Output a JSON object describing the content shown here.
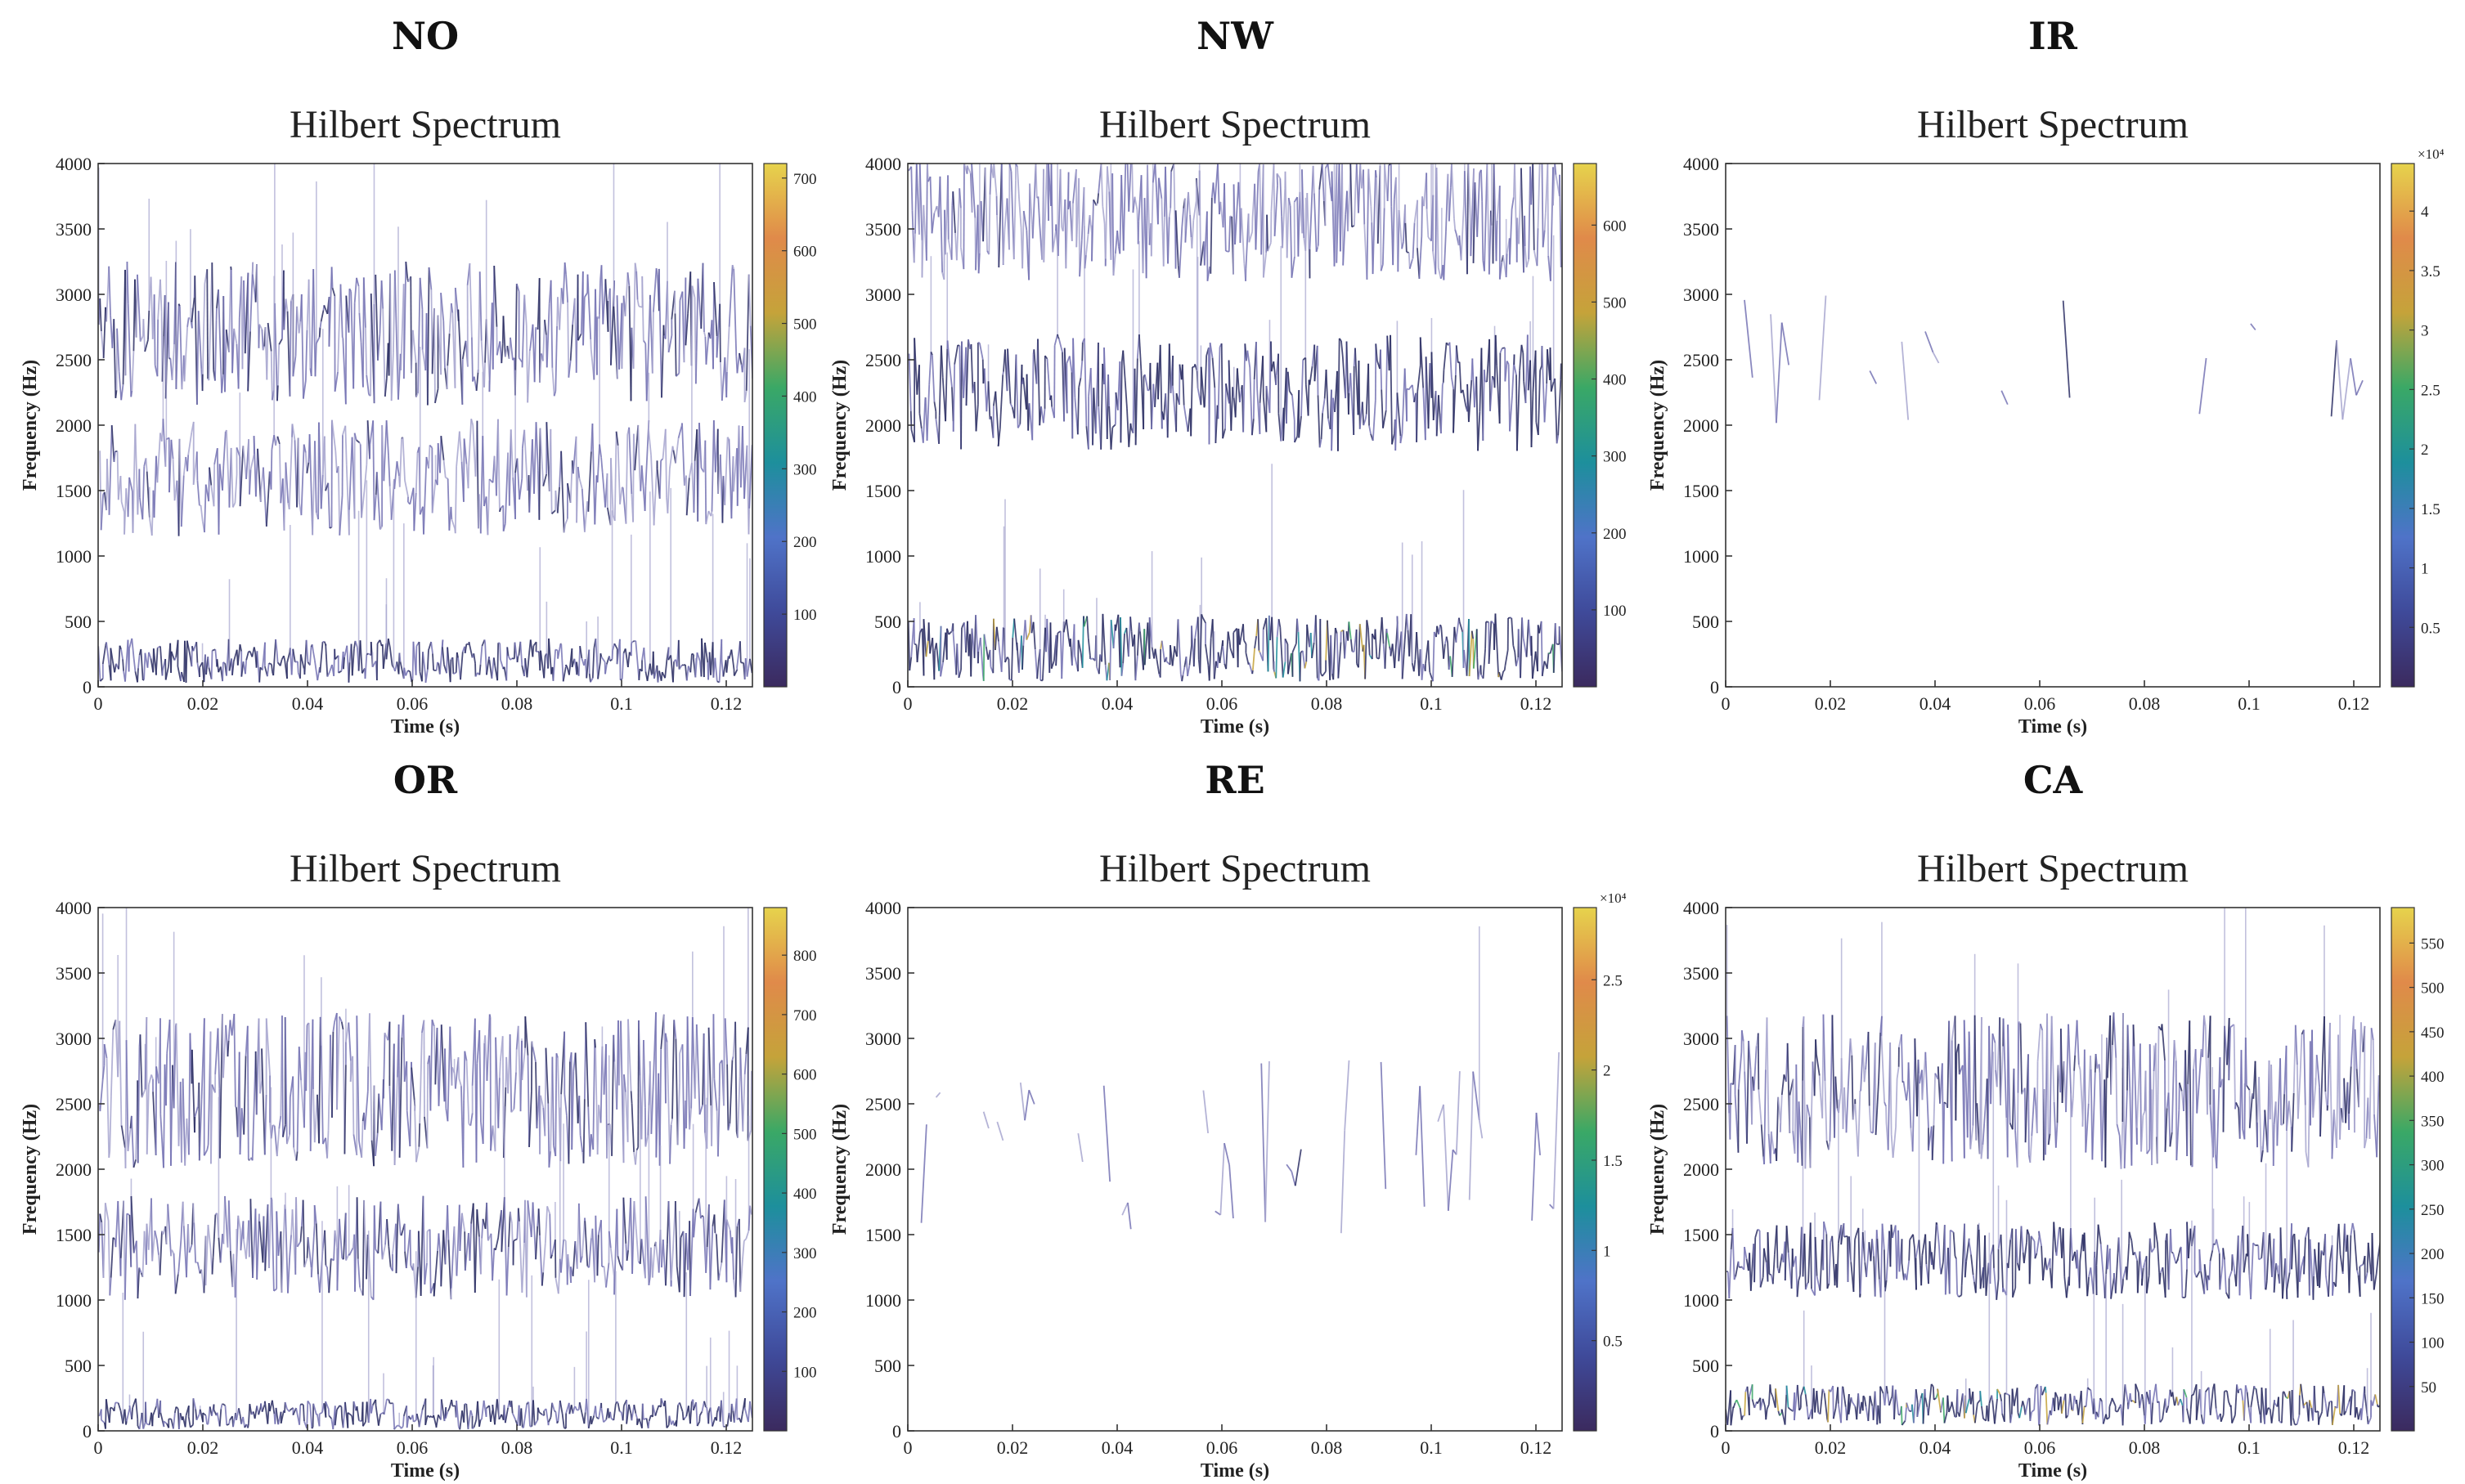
{
  "colors": {
    "cmap": [
      "#3b2a5e",
      "#3f4a9a",
      "#4f73c8",
      "#1d8f9c",
      "#3aa866",
      "#c5a33a",
      "#e08a4a",
      "#e6d34c"
    ],
    "trace_light": "#a8a6cf",
    "trace_mid": "#7674b4",
    "trace_dark": "#2c2f64"
  },
  "chart_data": [
    {
      "id": "NO",
      "type": "heatmap",
      "title": "NO",
      "subtitle": "Hilbert Spectrum",
      "xlabel": "Time (s)",
      "ylabel": "Frequency (Hz)",
      "xlim": [
        0,
        0.125
      ],
      "ylim": [
        0,
        4000
      ],
      "xticks": [
        "0",
        "0.02",
        "0.04",
        "0.06",
        "0.08",
        "0.1",
        "0.12"
      ],
      "yticks": [
        "0",
        "500",
        "1000",
        "1500",
        "2000",
        "2500",
        "3000",
        "3500",
        "4000"
      ],
      "colorbar": {
        "ticks": [
          "100",
          "200",
          "300",
          "400",
          "500",
          "600",
          "700"
        ],
        "max": 720,
        "multiplier": ""
      },
      "bands": [
        {
          "center": 2700,
          "spread": 550,
          "intensity": 0.35,
          "density": 1.0
        },
        {
          "center": 1600,
          "spread": 450,
          "intensity": 0.3,
          "density": 0.9
        },
        {
          "center": 200,
          "spread": 170,
          "intensity": 0.55,
          "density": 1.0
        }
      ]
    },
    {
      "id": "NW",
      "type": "heatmap",
      "title": "NW",
      "subtitle": "Hilbert Spectrum",
      "xlabel": "Time (s)",
      "ylabel": "Frequency (Hz)",
      "xlim": [
        0,
        0.125
      ],
      "ylim": [
        0,
        4000
      ],
      "xticks": [
        "0",
        "0.02",
        "0.04",
        "0.06",
        "0.08",
        "0.1",
        "0.12"
      ],
      "yticks": [
        "0",
        "500",
        "1000",
        "1500",
        "2000",
        "2500",
        "3000",
        "3500",
        "4000"
      ],
      "colorbar": {
        "ticks": [
          "100",
          "200",
          "300",
          "400",
          "500",
          "600"
        ],
        "max": 680,
        "multiplier": ""
      },
      "bands": [
        {
          "center": 3600,
          "spread": 500,
          "intensity": 0.3,
          "density": 1.0
        },
        {
          "center": 2250,
          "spread": 450,
          "intensity": 0.55,
          "density": 1.0
        },
        {
          "center": 300,
          "spread": 260,
          "intensity": 0.6,
          "density": 1.0
        }
      ]
    },
    {
      "id": "IR",
      "type": "heatmap",
      "title": "IR",
      "subtitle": "Hilbert Spectrum",
      "xlabel": "Time (s)",
      "ylabel": "Frequency (Hz)",
      "xlim": [
        0,
        0.125
      ],
      "ylim": [
        0,
        4000
      ],
      "xticks": [
        "0",
        "0.02",
        "0.04",
        "0.06",
        "0.08",
        "0.1",
        "0.12"
      ],
      "yticks": [
        "0",
        "500",
        "1000",
        "1500",
        "2000",
        "2500",
        "3000",
        "3500",
        "4000"
      ],
      "colorbar": {
        "ticks": [
          "0.5",
          "1",
          "1.5",
          "2",
          "2.5",
          "3",
          "3.5",
          "4"
        ],
        "max": 4.4,
        "multiplier": "×10⁴"
      },
      "bands": [
        {
          "center": 2500,
          "spread": 500,
          "intensity": 0.35,
          "density": 0.25
        }
      ]
    },
    {
      "id": "OR",
      "type": "heatmap",
      "title": "OR",
      "subtitle": "Hilbert Spectrum",
      "xlabel": "Time (s)",
      "ylabel": "Frequency (Hz)",
      "xlim": [
        0,
        0.125
      ],
      "ylim": [
        0,
        4000
      ],
      "xticks": [
        "0",
        "0.02",
        "0.04",
        "0.06",
        "0.08",
        "0.1",
        "0.12"
      ],
      "yticks": [
        "0",
        "500",
        "1000",
        "1500",
        "2000",
        "2500",
        "3000",
        "3500",
        "4000"
      ],
      "colorbar": {
        "ticks": [
          "100",
          "200",
          "300",
          "400",
          "500",
          "600",
          "700",
          "800"
        ],
        "max": 880,
        "multiplier": ""
      },
      "bands": [
        {
          "center": 2600,
          "spread": 600,
          "intensity": 0.35,
          "density": 1.0
        },
        {
          "center": 1400,
          "spread": 400,
          "intensity": 0.35,
          "density": 0.9
        },
        {
          "center": 130,
          "spread": 120,
          "intensity": 0.55,
          "density": 1.0
        }
      ]
    },
    {
      "id": "RE",
      "type": "heatmap",
      "title": "RE",
      "subtitle": "Hilbert Spectrum",
      "xlabel": "Time (s)",
      "ylabel": "Frequency (Hz)",
      "xlim": [
        0,
        0.125
      ],
      "ylim": [
        0,
        4000
      ],
      "xticks": [
        "0",
        "0.02",
        "0.04",
        "0.06",
        "0.08",
        "0.1",
        "0.12"
      ],
      "yticks": [
        "0",
        "500",
        "1000",
        "1500",
        "2000",
        "2500",
        "3000",
        "3500",
        "4000"
      ],
      "colorbar": {
        "ticks": [
          "0.5",
          "1",
          "1.5",
          "2",
          "2.5"
        ],
        "max": 2.9,
        "multiplier": "×10⁴"
      },
      "bands": [
        {
          "center": 2200,
          "spread": 700,
          "intensity": 0.3,
          "density": 0.35
        }
      ]
    },
    {
      "id": "CA",
      "type": "heatmap",
      "title": "CA",
      "subtitle": "Hilbert Spectrum",
      "xlabel": "Time (s)",
      "ylabel": "Frequency (Hz)",
      "xlim": [
        0,
        0.125
      ],
      "ylim": [
        0,
        4000
      ],
      "xticks": [
        "0",
        "0.02",
        "0.04",
        "0.06",
        "0.08",
        "0.1",
        "0.12"
      ],
      "yticks": [
        "0",
        "500",
        "1000",
        "1500",
        "2000",
        "2500",
        "3000",
        "3500",
        "4000"
      ],
      "colorbar": {
        "ticks": [
          "50",
          "100",
          "150",
          "200",
          "250",
          "300",
          "350",
          "400",
          "450",
          "500",
          "550"
        ],
        "max": 590,
        "multiplier": ""
      },
      "bands": [
        {
          "center": 2600,
          "spread": 600,
          "intensity": 0.35,
          "density": 1.0
        },
        {
          "center": 1300,
          "spread": 300,
          "intensity": 0.55,
          "density": 1.0
        },
        {
          "center": 200,
          "spread": 160,
          "intensity": 0.6,
          "density": 1.0
        }
      ]
    }
  ]
}
